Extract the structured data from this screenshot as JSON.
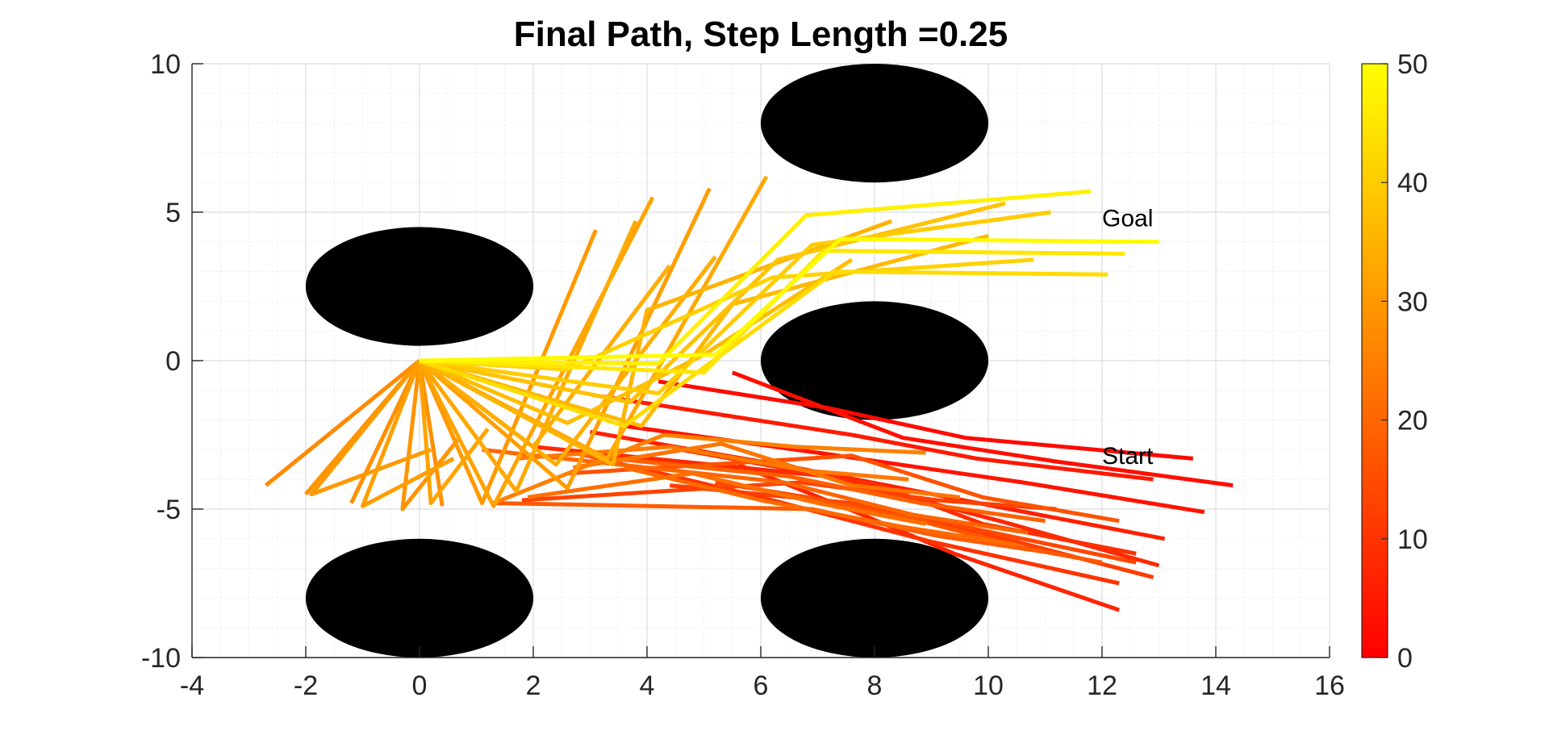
{
  "chart_data": {
    "type": "line",
    "title": "Final Path, Step Length =0.25",
    "xlabel": "",
    "ylabel": "",
    "xlim": [
      -4,
      16
    ],
    "ylim": [
      -10,
      10
    ],
    "xticks": [
      "-4",
      "-2",
      "0",
      "2",
      "4",
      "6",
      "8",
      "10",
      "12",
      "14",
      "16"
    ],
    "yticks": [
      "-10",
      "-5",
      "0",
      "5",
      "10"
    ],
    "grid": true,
    "colors": {
      "obstacle": "#000000",
      "low": "#ff0000",
      "mid": "#ff8000",
      "high": "#ffff00"
    },
    "colorbar": {
      "range": [
        0,
        50
      ],
      "ticks": [
        "0",
        "10",
        "20",
        "30",
        "40",
        "50"
      ],
      "placement": "right",
      "colormap": "autumn"
    },
    "obstacles": [
      {
        "cx": 0,
        "cy": 2.5,
        "rx": 2,
        "ry": 2
      },
      {
        "cx": 8,
        "cy": 8,
        "rx": 2,
        "ry": 2
      },
      {
        "cx": 8,
        "cy": 0,
        "rx": 2,
        "ry": 2
      },
      {
        "cx": 0,
        "cy": -8,
        "rx": 2,
        "ry": 2
      },
      {
        "cx": 8,
        "cy": -8,
        "rx": 2,
        "ry": 2
      }
    ],
    "annotations": [
      {
        "text": "Goal",
        "x": 12,
        "y": 4.8
      },
      {
        "text": "Start",
        "x": 12,
        "y": -3.2
      }
    ],
    "series": [
      {
        "level": 2,
        "x": [
          13.6,
          9.6,
          7.2,
          4.2
        ],
        "y": [
          -3.3,
          -2.6,
          -1.6,
          -0.7
        ]
      },
      {
        "level": 3,
        "x": [
          14.3,
          11.2,
          8.5,
          5.5
        ],
        "y": [
          -4.2,
          -3.4,
          -2.6,
          -0.4
        ]
      },
      {
        "level": 4,
        "x": [
          13.8,
          10.6,
          7.0,
          3.6
        ],
        "y": [
          -5.1,
          -4.1,
          -3.1,
          -2.2
        ]
      },
      {
        "level": 5,
        "x": [
          12.9,
          9.8,
          7.6,
          3.2
        ],
        "y": [
          -4.0,
          -3.3,
          -2.5,
          -1.2
        ]
      },
      {
        "level": 6,
        "x": [
          13.1,
          10.1,
          6.6,
          3.0
        ],
        "y": [
          -6.0,
          -4.9,
          -3.6,
          -2.4
        ]
      },
      {
        "level": 7,
        "x": [
          12.3,
          9.4,
          7.8,
          5.6
        ],
        "y": [
          -8.4,
          -6.5,
          -5.2,
          -3.5
        ]
      },
      {
        "level": 8,
        "x": [
          13.0,
          10.2,
          7.2,
          2.0
        ],
        "y": [
          -6.9,
          -5.4,
          -3.9,
          -2.9
        ]
      },
      {
        "level": 9,
        "x": [
          12.6,
          9.9,
          8.1,
          4.6
        ],
        "y": [
          -6.5,
          -5.5,
          -4.2,
          -3.0
        ]
      },
      {
        "level": 10,
        "x": [
          12.3,
          9.0,
          6.0,
          2.5
        ],
        "y": [
          -7.5,
          -6.1,
          -4.6,
          -3.0
        ]
      },
      {
        "level": 12,
        "x": [
          12.9,
          10.5,
          7.6,
          4.4
        ],
        "y": [
          -7.3,
          -6.1,
          -4.8,
          -4.2
        ]
      },
      {
        "level": 13,
        "x": [
          11.2,
          9.1,
          6.7,
          1.8
        ],
        "y": [
          -5.0,
          -4.7,
          -4.1,
          -4.7
        ]
      },
      {
        "level": 14,
        "x": [
          12.6,
          10.6,
          8.1,
          5.2
        ],
        "y": [
          -6.8,
          -6.0,
          -5.0,
          -4.1
        ]
      },
      {
        "level": 16,
        "x": [
          12.3,
          9.9,
          7.6,
          2.6
        ],
        "y": [
          -5.4,
          -4.6,
          -3.2,
          -3.8
        ]
      },
      {
        "level": 17,
        "x": [
          12.0,
          10.6,
          8.6,
          6.1
        ],
        "y": [
          -6.8,
          -6.3,
          -5.3,
          -4.4
        ]
      },
      {
        "level": 18,
        "x": [
          11.2,
          9.1,
          6.9,
          1.3
        ],
        "y": [
          -6.5,
          -5.9,
          -5.0,
          -4.8
        ]
      },
      {
        "level": 19,
        "x": [
          11.0,
          8.8,
          6.5,
          2.9
        ],
        "y": [
          -5.4,
          -4.8,
          -3.9,
          -3.2
        ]
      },
      {
        "level": 20,
        "x": [
          10.7,
          8.7,
          6.4,
          1.1
        ],
        "y": [
          -5.8,
          -5.2,
          -4.1,
          -3.0
        ]
      },
      {
        "level": 21,
        "x": [
          10.5,
          8.5,
          6.0,
          3.6
        ],
        "y": [
          -6.2,
          -5.6,
          -4.7,
          -3.6
        ]
      },
      {
        "level": 22,
        "x": [
          8.9,
          7.0,
          4.8,
          1.9
        ],
        "y": [
          -5.5,
          -4.8,
          -3.8,
          -4.6
        ]
      },
      {
        "level": 23,
        "x": [
          9.5,
          7.6,
          5.3,
          2.7
        ],
        "y": [
          -4.6,
          -4.2,
          -2.8,
          -3.6
        ]
      },
      {
        "level": 24,
        "x": [
          8.6,
          6.8,
          4.4,
          1.7
        ],
        "y": [
          -4.0,
          -3.7,
          -2.9,
          -3.3
        ]
      },
      {
        "level": 25,
        "x": [
          8.9,
          6.6,
          4.3,
          1.3
        ],
        "y": [
          -3.1,
          -2.9,
          -2.5,
          -4.8
        ]
      },
      {
        "level": 27,
        "x": [
          0,
          -2.7
        ],
        "y": [
          0,
          -4.2
        ]
      },
      {
        "level": 28,
        "x": [
          0,
          -1.2
        ],
        "y": [
          0,
          -4.8
        ]
      },
      {
        "level": 28,
        "x": [
          0,
          0.4
        ],
        "y": [
          0,
          -4.9
        ]
      },
      {
        "level": 29,
        "x": [
          -2.0,
          0
        ],
        "y": [
          -4.5,
          0
        ]
      },
      {
        "level": 29,
        "x": [
          0,
          -0.3,
          0.7
        ],
        "y": [
          0,
          -5.0,
          -2.6
        ]
      },
      {
        "level": 30,
        "x": [
          0,
          -1.9,
          0.2
        ],
        "y": [
          0,
          -4.5,
          -3.0
        ]
      },
      {
        "level": 30,
        "x": [
          0,
          1.1,
          3.1
        ],
        "y": [
          0,
          -4.8,
          4.4
        ]
      },
      {
        "level": 31,
        "x": [
          0,
          -1.0,
          0.6
        ],
        "y": [
          0,
          -4.9,
          -3.3
        ]
      },
      {
        "level": 31,
        "x": [
          0,
          2.6,
          5.1
        ],
        "y": [
          0,
          -4.3,
          5.8
        ]
      },
      {
        "level": 32,
        "x": [
          0,
          0.2,
          1.2
        ],
        "y": [
          0,
          -4.8,
          -2.3
        ]
      },
      {
        "level": 32,
        "x": [
          0,
          1.3,
          4.1
        ],
        "y": [
          0,
          -4.9,
          5.5
        ]
      },
      {
        "level": 33,
        "x": [
          0,
          1.7,
          3.8
        ],
        "y": [
          0,
          -4.4,
          4.7
        ]
      },
      {
        "level": 33,
        "x": [
          0,
          3.3,
          6.1
        ],
        "y": [
          0,
          -3.3,
          6.2
        ]
      },
      {
        "level": 34,
        "x": [
          0,
          2.0,
          4.4
        ],
        "y": [
          0,
          -2.9,
          3.2
        ]
      },
      {
        "level": 34,
        "x": [
          0,
          2.4,
          5.2
        ],
        "y": [
          0,
          -3.5,
          3.5
        ]
      },
      {
        "level": 35,
        "x": [
          0,
          3.4,
          4.0,
          8.3
        ],
        "y": [
          0,
          -3.5,
          1.7,
          4.7
        ]
      },
      {
        "level": 36,
        "x": [
          0,
          3.9,
          5.5,
          10.0
        ],
        "y": [
          0,
          -2.2,
          1.9,
          4.2
        ]
      },
      {
        "level": 37,
        "x": [
          0,
          2.6,
          5.0,
          7.6
        ],
        "y": [
          0,
          -2.1,
          0.2,
          3.4
        ]
      },
      {
        "level": 38,
        "x": [
          0,
          3.7,
          6.3,
          10.3
        ],
        "y": [
          0,
          -1.4,
          3.4,
          5.3
        ]
      },
      {
        "level": 40,
        "x": [
          0,
          4.2,
          6.9,
          11.1
        ],
        "y": [
          0,
          -1.1,
          3.9,
          5.0
        ]
      },
      {
        "level": 41,
        "x": [
          0,
          2.6,
          6.2,
          10.8
        ],
        "y": [
          0,
          -0.3,
          2.8,
          3.4
        ]
      },
      {
        "level": 43,
        "x": [
          0,
          3.6,
          7.3,
          12.1
        ],
        "y": [
          0,
          -2.2,
          3.0,
          2.9
        ]
      },
      {
        "level": 45,
        "x": [
          0,
          5.0,
          7.1,
          12.4
        ],
        "y": [
          0,
          -0.4,
          3.7,
          3.6
        ]
      },
      {
        "level": 47,
        "x": [
          0,
          4.2,
          6.8,
          11.8
        ],
        "y": [
          0,
          -0.1,
          4.9,
          5.7
        ]
      },
      {
        "level": 49,
        "x": [
          0,
          5.2,
          7.4,
          13.0
        ],
        "y": [
          0,
          0.2,
          4.1,
          4.0
        ]
      }
    ]
  }
}
